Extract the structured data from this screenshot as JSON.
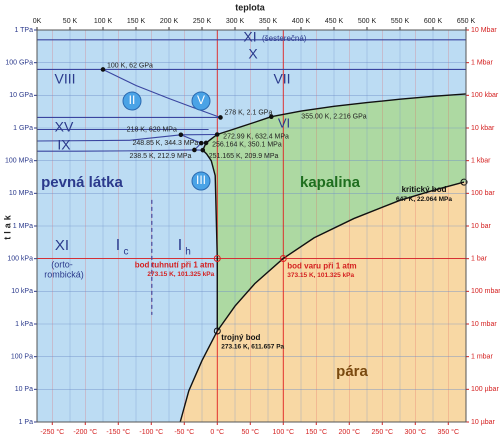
{
  "chart_data": {
    "type": "phase-diagram",
    "title": "teplota",
    "ylabel": "tlak",
    "ylog": true,
    "grid": true,
    "xlim": [
      0,
      650
    ],
    "xticks": [
      {
        "value": 0,
        "label": "0K"
      },
      {
        "value": 50,
        "label": "50 K"
      },
      {
        "value": 100,
        "label": "100 K"
      },
      {
        "value": 150,
        "label": "150 K"
      },
      {
        "value": 200,
        "label": "200 K"
      },
      {
        "value": 250,
        "label": "250 K"
      },
      {
        "value": 300,
        "label": "300 K"
      },
      {
        "value": 350,
        "label": "350 K"
      },
      {
        "value": 400,
        "label": "400 K"
      },
      {
        "value": 450,
        "label": "450 K"
      },
      {
        "value": 500,
        "label": "500 K"
      },
      {
        "value": 550,
        "label": "550 K"
      },
      {
        "value": 600,
        "label": "600 K"
      },
      {
        "value": 650,
        "label": "650 K"
      }
    ],
    "x2ticks": [
      {
        "value": 23.15,
        "label": "-250 °C"
      },
      {
        "value": 73.15,
        "label": "-200 °C"
      },
      {
        "value": 123.15,
        "label": "-150 °C"
      },
      {
        "value": 173.15,
        "label": "-100 °C"
      },
      {
        "value": 223.15,
        "label": "-50 °C"
      },
      {
        "value": 273.15,
        "label": "0 °C"
      },
      {
        "value": 323.15,
        "label": "50 °C"
      },
      {
        "value": 373.15,
        "label": "100 °C"
      },
      {
        "value": 423.15,
        "label": "150 °C"
      },
      {
        "value": 473.15,
        "label": "200 °C"
      },
      {
        "value": 523.15,
        "label": "250 °C"
      },
      {
        "value": 573.15,
        "label": "300 °C"
      },
      {
        "value": 623.15,
        "label": "350 °C"
      }
    ],
    "ylim": [
      1,
      1000000000000
    ],
    "yticks": [
      {
        "value": 1,
        "label": "1 Pa"
      },
      {
        "value": 10,
        "label": "10 Pa"
      },
      {
        "value": 100,
        "label": "100 Pa"
      },
      {
        "value": 1000,
        "label": "1 kPa"
      },
      {
        "value": 10000,
        "label": "10 kPa"
      },
      {
        "value": 100000,
        "label": "100 kPa"
      },
      {
        "value": 1000000,
        "label": "1 MPa"
      },
      {
        "value": 10000000,
        "label": "10 MPa"
      },
      {
        "value": 100000000,
        "label": "100 MPa"
      },
      {
        "value": 1000000000,
        "label": "1 GPa"
      },
      {
        "value": 10000000000,
        "label": "10 GPa"
      },
      {
        "value": 100000000000,
        "label": "100 GPa"
      },
      {
        "value": 1000000000000,
        "label": "1 TPa"
      }
    ],
    "y2lim": [
      1e-05,
      10000000
    ],
    "y2ticks": [
      {
        "value": 1e-05,
        "label": "10 µbar"
      },
      {
        "value": 0.0001,
        "label": "100 µbar"
      },
      {
        "value": 0.001,
        "label": "1 mbar"
      },
      {
        "value": 0.01,
        "label": "10 mbar"
      },
      {
        "value": 0.1,
        "label": "100 mbar"
      },
      {
        "value": 1,
        "label": "1 bar"
      },
      {
        "value": 10,
        "label": "10 bar"
      },
      {
        "value": 100,
        "label": "100 bar"
      },
      {
        "value": 1000,
        "label": "1 kbar"
      },
      {
        "value": 10000,
        "label": "10 kbar"
      },
      {
        "value": 100000,
        "label": "100 kbar"
      },
      {
        "value": 1000000,
        "label": "1 Mbar"
      },
      {
        "value": 10000000,
        "label": "10 Mbar"
      }
    ],
    "colors": {
      "solid": "#bcdcf3",
      "liquid": "#add9a2",
      "vapor": "#f8d8a4",
      "left_axis": "#2b3a8c",
      "right_axis": "#d42020"
    },
    "curves": [
      {
        "color": "#111111",
        "x": [
          217,
          230,
          250,
          273.16
        ],
        "y": [
          1,
          9,
          76,
          611.657
        ]
      },
      {
        "color": "#111111",
        "x": [
          273.16,
          300,
          330,
          373.15,
          420,
          480,
          550,
          600,
          647
        ],
        "y": [
          611.657,
          3537,
          17200,
          101325,
          437000,
          1690000,
          6120000,
          12300000,
          22064000
        ]
      },
      {
        "color": "#111111",
        "x": [
          273.16,
          273.15,
          270,
          264,
          257,
          251.165
        ],
        "y": [
          611.657,
          101325,
          35000000,
          100000000,
          160000000,
          209900000
        ]
      },
      {
        "color": "#111111",
        "x": [
          251.165,
          256.164
        ],
        "y": [
          209900000,
          350100000
        ]
      },
      {
        "color": "#111111",
        "x": [
          256.164,
          265,
          272.99
        ],
        "y": [
          350100000,
          480000000,
          632400000
        ]
      },
      {
        "color": "#111111",
        "x": [
          272.99,
          300,
          330,
          355
        ],
        "y": [
          632400000,
          950000000,
          1500000000,
          2216000000
        ]
      },
      {
        "color": "#111111",
        "x": [
          355,
          400,
          450,
          500,
          550,
          600,
          650
        ],
        "y": [
          2216000000,
          3300000000,
          4600000000,
          6000000000,
          7600000000,
          9300000000,
          11000000000
        ]
      },
      {
        "color": "#3a45a0",
        "x": [
          251.165,
          238.5
        ],
        "y": [
          209900000,
          212900000
        ]
      },
      {
        "color": "#3a45a0",
        "x": [
          238.5,
          150,
          60,
          0
        ],
        "y": [
          212900000,
          200000000,
          195000000,
          195000000
        ]
      },
      {
        "color": "#3a45a0",
        "x": [
          238.5,
          248.85
        ],
        "y": [
          212900000,
          344300000
        ]
      },
      {
        "color": "#3a45a0",
        "x": [
          248.85,
          256.164
        ],
        "y": [
          344300000,
          350100000
        ]
      },
      {
        "color": "#3a45a0",
        "x": [
          248.85,
          218
        ],
        "y": [
          344300000,
          620000000
        ]
      },
      {
        "color": "#3a45a0",
        "x": [
          218,
          272.99
        ],
        "y": [
          620000000,
          632400000
        ]
      },
      {
        "color": "#3a45a0",
        "x": [
          0,
          140,
          218
        ],
        "y": [
          400000000,
          420000000,
          620000000
        ]
      },
      {
        "color": "#3a45a0",
        "x": [
          0,
          260
        ],
        "y": [
          900000000,
          900000000
        ]
      },
      {
        "color": "#3a45a0",
        "x": [
          0,
          278
        ],
        "y": [
          2100000000,
          2100000000
        ]
      },
      {
        "color": "#3a45a0",
        "x": [
          278,
          240,
          200,
          150,
          100
        ],
        "y": [
          2100000000,
          4000000000,
          8000000000,
          20000000000,
          62000000000
        ]
      },
      {
        "color": "#3a45a0",
        "x": [
          0,
          650
        ],
        "y": [
          62000000000,
          62000000000
        ]
      },
      {
        "color": "#3a45a0",
        "x": [
          0,
          650
        ],
        "y": [
          500000000000,
          500000000000
        ]
      },
      {
        "color": "#3a45a0",
        "dash": true,
        "x": [
          174,
          174
        ],
        "y": [
          6300000,
          1900
        ]
      }
    ],
    "points": [
      {
        "x": 100,
        "y": 62000000000,
        "label": "100 K, 62 GPa"
      },
      {
        "x": 278,
        "y": 2100000000,
        "label": "278 K, 2.1 GPa"
      },
      {
        "x": 355,
        "y": 2216000000,
        "label": "355.00 K, 2.216 GPa"
      },
      {
        "x": 218,
        "y": 620000000,
        "label": "218 K, 620 MPa"
      },
      {
        "x": 272.99,
        "y": 632400000,
        "label": "272.99 K, 632.4 MPa"
      },
      {
        "x": 248.85,
        "y": 344300000,
        "label": "248.85 K, 344.3 MPa"
      },
      {
        "x": 256.164,
        "y": 350100000,
        "label": "256.164 K, 350.1 MPa"
      },
      {
        "x": 251.165,
        "y": 209900000,
        "label": "251.165 K, 209.9 MPa"
      },
      {
        "x": 238.5,
        "y": 212900000,
        "label": "238.5 K, 212.9 MPa"
      },
      {
        "x": 647,
        "y": 22064000,
        "label": "kritický bod",
        "note": "647 K, 22.064 MPa"
      },
      {
        "x": 273.16,
        "y": 611.657,
        "label": "trojný bod",
        "note": "273.16 K, 611.657 Pa"
      },
      {
        "x": 273.15,
        "y": 101325,
        "label": "bod tuhnutí při 1 atm",
        "note": "273.15 K, 101.325 kPa"
      },
      {
        "x": 373.15,
        "y": 101325,
        "label": "bod varu při 1 atm",
        "note": "373.15 K, 101.325 kPa"
      }
    ],
    "labels": [
      "VIII",
      "VII",
      "X",
      "XI",
      "(šesterečná)",
      "XV",
      "IX",
      "II",
      "V",
      "VI",
      "III",
      "pevná látka",
      "kapalina",
      "pára",
      "XI",
      "(orto-",
      "rombická)",
      "I",
      "c",
      "I",
      "h"
    ]
  }
}
